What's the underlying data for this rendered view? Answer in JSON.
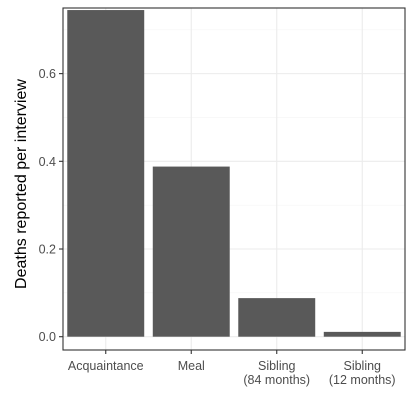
{
  "chart_data": {
    "type": "bar",
    "title": "",
    "xlabel": "",
    "ylabel": "Deaths reported per interview",
    "categories": [
      [
        "Acquaintance"
      ],
      [
        "Meal"
      ],
      [
        "Sibling",
        "(84 months)"
      ],
      [
        "Sibling",
        "(12 months)"
      ]
    ],
    "values": [
      0.745,
      0.388,
      0.088,
      0.011
    ],
    "ylim": [
      0,
      0.78
    ],
    "yticks": [
      0.0,
      0.2,
      0.4,
      0.6
    ],
    "ytick_labels": [
      "0.0",
      "0.2",
      "0.4",
      "0.6"
    ],
    "grid": true,
    "legend": "none",
    "colors": {
      "bar": "#595959",
      "panel_border": "#333333",
      "grid_major": "#ebebeb",
      "grid_minor": "#f5f5f5",
      "tick_label": "#4d4d4d",
      "axis_title": "#000000"
    }
  }
}
